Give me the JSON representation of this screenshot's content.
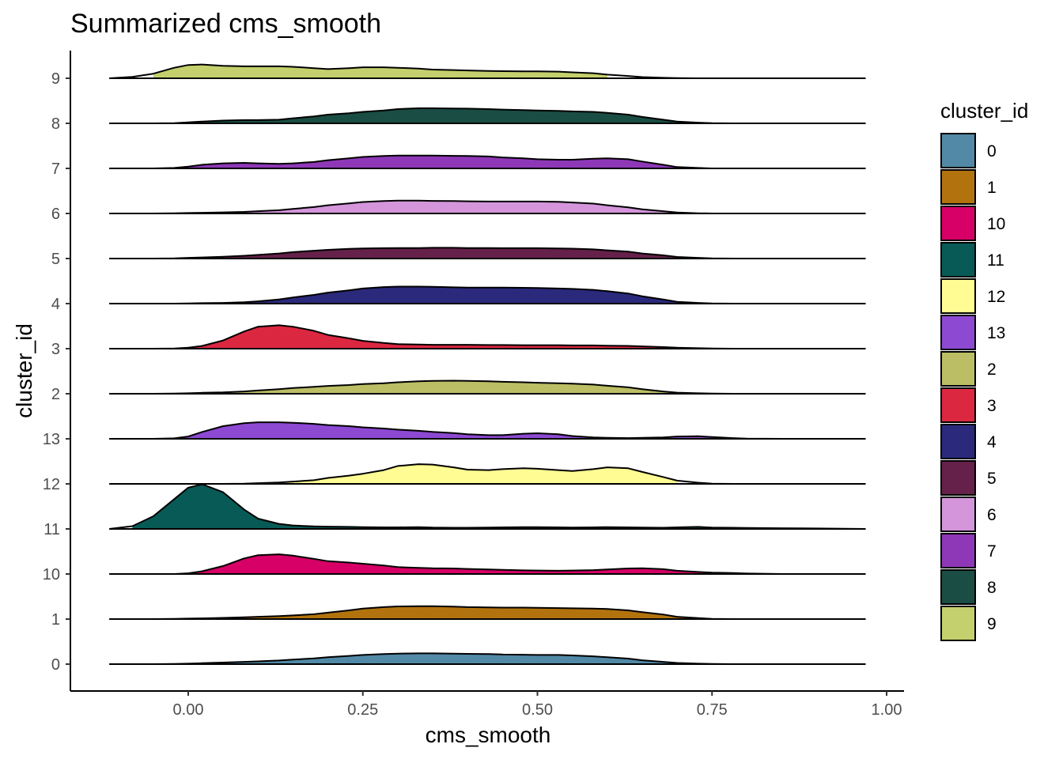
{
  "chart_data": {
    "type": "ridgeline",
    "title": "Summarized cms_smooth",
    "xlabel": "cms_smooth",
    "ylabel": "cluster_id",
    "xlim": [
      -0.11,
      0.97
    ],
    "x_ticks": [
      "0.00",
      "0.25",
      "0.50",
      "0.75",
      "1.00"
    ],
    "grid": false,
    "legend": {
      "title": "cluster_id",
      "position": "right",
      "items": [
        {
          "label": "0",
          "color": "#5289a6"
        },
        {
          "label": "1",
          "color": "#b2730e"
        },
        {
          "label": "10",
          "color": "#d60066"
        },
        {
          "label": "11",
          "color": "#085a56"
        },
        {
          "label": "12",
          "color": "#fffc93"
        },
        {
          "label": "13",
          "color": "#8d49d2"
        },
        {
          "label": "2",
          "color": "#bbbe64"
        },
        {
          "label": "3",
          "color": "#dc2741"
        },
        {
          "label": "4",
          "color": "#2a297c"
        },
        {
          "label": "5",
          "color": "#65214a"
        },
        {
          "label": "6",
          "color": "#d495db"
        },
        {
          "label": "7",
          "color": "#8e38b7"
        },
        {
          "label": "8",
          "color": "#1a4d43"
        },
        {
          "label": "9",
          "color": "#c4d06d"
        }
      ]
    },
    "x": [
      -0.113,
      -0.08,
      -0.05,
      -0.02,
      0.0,
      0.02,
      0.05,
      0.08,
      0.1,
      0.13,
      0.15,
      0.18,
      0.2,
      0.23,
      0.25,
      0.28,
      0.3,
      0.33,
      0.35,
      0.38,
      0.4,
      0.43,
      0.45,
      0.48,
      0.5,
      0.53,
      0.55,
      0.58,
      0.6,
      0.63,
      0.65,
      0.68,
      0.7,
      0.73,
      0.75,
      0.78,
      0.8,
      0.85,
      0.9,
      0.97
    ],
    "series": [
      {
        "name": "0",
        "fill_range": [
          0.0,
          0.74
        ],
        "values": [
          0,
          0,
          0,
          0.01,
          0.02,
          0.04,
          0.07,
          0.1,
          0.12,
          0.16,
          0.2,
          0.25,
          0.3,
          0.36,
          0.4,
          0.44,
          0.46,
          0.47,
          0.47,
          0.46,
          0.45,
          0.44,
          0.42,
          0.41,
          0.4,
          0.4,
          0.38,
          0.34,
          0.3,
          0.24,
          0.17,
          0.1,
          0.05,
          0.02,
          0.01,
          0,
          0,
          0,
          0,
          0
        ]
      },
      {
        "name": "1",
        "fill_range": [
          0.02,
          0.74
        ],
        "values": [
          0,
          0,
          0,
          0.01,
          0.02,
          0.03,
          0.05,
          0.08,
          0.1,
          0.13,
          0.16,
          0.21,
          0.28,
          0.38,
          0.46,
          0.52,
          0.55,
          0.56,
          0.56,
          0.54,
          0.52,
          0.51,
          0.5,
          0.5,
          0.49,
          0.48,
          0.47,
          0.46,
          0.44,
          0.38,
          0.3,
          0.2,
          0.1,
          0.04,
          0.01,
          0,
          0,
          0,
          0,
          0
        ]
      },
      {
        "name": "10",
        "fill_range": [
          0.0,
          0.8
        ],
        "values": [
          0,
          0,
          0,
          0,
          0.03,
          0.12,
          0.35,
          0.68,
          0.82,
          0.86,
          0.8,
          0.66,
          0.56,
          0.5,
          0.45,
          0.37,
          0.3,
          0.27,
          0.25,
          0.24,
          0.22,
          0.2,
          0.18,
          0.16,
          0.15,
          0.14,
          0.15,
          0.17,
          0.2,
          0.24,
          0.25,
          0.21,
          0.14,
          0.09,
          0.06,
          0.04,
          0.02,
          0,
          0,
          0
        ]
      },
      {
        "name": "11",
        "fill_range": [
          -0.1,
          0.97
        ],
        "values": [
          0,
          0.12,
          0.55,
          1.3,
          1.8,
          1.95,
          1.6,
          0.85,
          0.45,
          0.22,
          0.15,
          0.11,
          0.1,
          0.09,
          0.08,
          0.07,
          0.07,
          0.08,
          0.06,
          0.05,
          0.05,
          0.06,
          0.07,
          0.08,
          0.08,
          0.07,
          0.06,
          0.07,
          0.08,
          0.07,
          0.06,
          0.05,
          0.07,
          0.09,
          0.06,
          0.05,
          0.04,
          0.03,
          0.02,
          0
        ]
      },
      {
        "name": "12",
        "fill_range": [
          0.1,
          0.72
        ],
        "values": [
          0,
          0,
          0,
          0,
          0,
          0,
          0,
          0.01,
          0.03,
          0.06,
          0.1,
          0.16,
          0.26,
          0.36,
          0.44,
          0.6,
          0.78,
          0.86,
          0.84,
          0.72,
          0.62,
          0.6,
          0.64,
          0.68,
          0.66,
          0.6,
          0.56,
          0.64,
          0.72,
          0.68,
          0.52,
          0.3,
          0.14,
          0.05,
          0.01,
          0,
          0,
          0,
          0,
          0
        ]
      },
      {
        "name": "13",
        "fill_range": [
          -0.02,
          0.78
        ],
        "values": [
          0,
          0,
          0,
          0.02,
          0.1,
          0.3,
          0.55,
          0.68,
          0.72,
          0.72,
          0.7,
          0.65,
          0.6,
          0.55,
          0.5,
          0.45,
          0.4,
          0.35,
          0.3,
          0.25,
          0.2,
          0.16,
          0.16,
          0.22,
          0.24,
          0.2,
          0.12,
          0.06,
          0.04,
          0.03,
          0.04,
          0.06,
          0.1,
          0.11,
          0.08,
          0.03,
          0.01,
          0,
          0,
          0
        ]
      },
      {
        "name": "2",
        "fill_range": [
          0.0,
          0.74
        ],
        "values": [
          0,
          0,
          0,
          0.01,
          0.02,
          0.04,
          0.06,
          0.1,
          0.14,
          0.2,
          0.25,
          0.3,
          0.34,
          0.38,
          0.42,
          0.46,
          0.5,
          0.54,
          0.56,
          0.57,
          0.56,
          0.54,
          0.52,
          0.5,
          0.48,
          0.46,
          0.44,
          0.4,
          0.35,
          0.28,
          0.2,
          0.1,
          0.05,
          0.02,
          0.01,
          0,
          0,
          0,
          0,
          0
        ]
      },
      {
        "name": "3",
        "fill_range": [
          0.0,
          0.8
        ],
        "values": [
          0,
          0,
          0,
          0.01,
          0.04,
          0.12,
          0.36,
          0.75,
          0.96,
          1.02,
          0.96,
          0.78,
          0.6,
          0.45,
          0.34,
          0.25,
          0.2,
          0.18,
          0.17,
          0.17,
          0.17,
          0.16,
          0.16,
          0.15,
          0.15,
          0.15,
          0.14,
          0.14,
          0.13,
          0.12,
          0.1,
          0.07,
          0.04,
          0.02,
          0.01,
          0,
          0,
          0,
          0,
          0
        ]
      },
      {
        "name": "4",
        "fill_range": [
          0.06,
          0.74
        ],
        "values": [
          0,
          0,
          0,
          0,
          0.01,
          0.02,
          0.03,
          0.06,
          0.1,
          0.18,
          0.27,
          0.38,
          0.48,
          0.58,
          0.66,
          0.72,
          0.74,
          0.74,
          0.73,
          0.71,
          0.7,
          0.7,
          0.7,
          0.69,
          0.68,
          0.66,
          0.64,
          0.6,
          0.54,
          0.44,
          0.32,
          0.18,
          0.08,
          0.03,
          0.01,
          0,
          0,
          0,
          0,
          0
        ]
      },
      {
        "name": "5",
        "fill_range": [
          0.0,
          0.76
        ],
        "values": [
          0,
          0,
          0,
          0.01,
          0.03,
          0.05,
          0.08,
          0.12,
          0.16,
          0.22,
          0.28,
          0.34,
          0.38,
          0.42,
          0.44,
          0.45,
          0.46,
          0.46,
          0.47,
          0.47,
          0.46,
          0.46,
          0.45,
          0.45,
          0.45,
          0.44,
          0.43,
          0.4,
          0.36,
          0.3,
          0.22,
          0.14,
          0.07,
          0.03,
          0.01,
          0,
          0,
          0,
          0,
          0
        ]
      },
      {
        "name": "6",
        "fill_range": [
          0.04,
          0.72
        ],
        "values": [
          0,
          0,
          0,
          0.01,
          0.02,
          0.03,
          0.05,
          0.07,
          0.1,
          0.14,
          0.2,
          0.28,
          0.36,
          0.44,
          0.5,
          0.54,
          0.56,
          0.56,
          0.55,
          0.54,
          0.53,
          0.52,
          0.52,
          0.52,
          0.52,
          0.51,
          0.48,
          0.43,
          0.36,
          0.27,
          0.18,
          0.1,
          0.04,
          0.01,
          0,
          0,
          0,
          0,
          0,
          0
        ]
      },
      {
        "name": "7",
        "fill_range": [
          -0.02,
          0.72
        ],
        "values": [
          0,
          0,
          0,
          0.02,
          0.08,
          0.16,
          0.22,
          0.24,
          0.22,
          0.2,
          0.22,
          0.28,
          0.36,
          0.44,
          0.5,
          0.54,
          0.56,
          0.56,
          0.56,
          0.55,
          0.54,
          0.52,
          0.48,
          0.44,
          0.4,
          0.38,
          0.38,
          0.42,
          0.44,
          0.4,
          0.3,
          0.16,
          0.06,
          0.02,
          0,
          0,
          0,
          0,
          0,
          0
        ]
      },
      {
        "name": "8",
        "fill_range": [
          0.0,
          0.74
        ],
        "values": [
          0,
          0,
          0,
          0.01,
          0.04,
          0.08,
          0.12,
          0.14,
          0.14,
          0.16,
          0.22,
          0.3,
          0.38,
          0.44,
          0.5,
          0.56,
          0.62,
          0.66,
          0.66,
          0.65,
          0.64,
          0.62,
          0.6,
          0.58,
          0.56,
          0.54,
          0.52,
          0.5,
          0.46,
          0.38,
          0.28,
          0.16,
          0.08,
          0.03,
          0.01,
          0,
          0,
          0,
          0,
          0
        ]
      },
      {
        "name": "9",
        "fill_range": [
          -0.06,
          0.6
        ],
        "values": [
          0,
          0.06,
          0.2,
          0.46,
          0.58,
          0.6,
          0.54,
          0.52,
          0.52,
          0.52,
          0.5,
          0.44,
          0.4,
          0.44,
          0.48,
          0.48,
          0.46,
          0.42,
          0.38,
          0.36,
          0.34,
          0.32,
          0.31,
          0.3,
          0.3,
          0.29,
          0.26,
          0.22,
          0.16,
          0.1,
          0.05,
          0.02,
          0.01,
          0,
          0,
          0,
          0,
          0,
          0,
          0
        ]
      }
    ]
  }
}
